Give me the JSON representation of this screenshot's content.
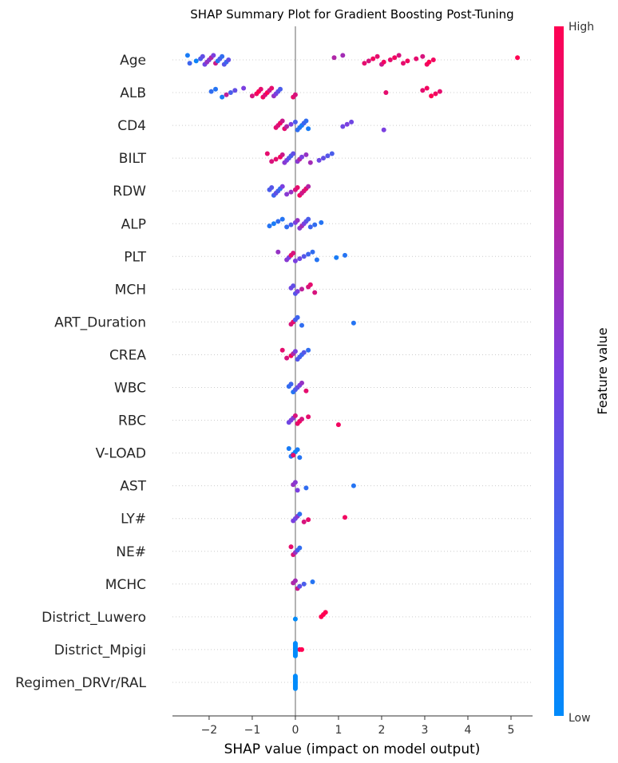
{
  "chart_data": {
    "type": "scatter",
    "subtype": "shap-beeswarm",
    "title": "SHAP Summary Plot for Gradient Boosting Post-Tuning",
    "xlabel": "SHAP value (impact on model output)",
    "xlim": [
      -2.85,
      5.5
    ],
    "xticks": [
      -2,
      -1,
      0,
      1,
      2,
      3,
      4,
      5
    ],
    "features": [
      "Age",
      "ALB",
      "CD4",
      "BILT",
      "RDW",
      "ALP",
      "PLT",
      "MCH",
      "ART_Duration",
      "CREA",
      "WBC",
      "RBC",
      "V-LOAD",
      "AST",
      "LY#",
      "NE#",
      "MCHC",
      "District_Luwero",
      "District_Mpigi",
      "Regimen_DRVr/RAL"
    ],
    "colorbar": {
      "label": "Feature value",
      "high_label": "High",
      "low_label": "Low",
      "high_color": "#ff0052",
      "mid_color": "#7b3fe0",
      "low_color": "#008bfb"
    },
    "series": [
      {
        "feature": "Age",
        "points": [
          [
            -2.5,
            0.1
          ],
          [
            -2.45,
            0.25
          ],
          [
            -2.3,
            0.05
          ],
          [
            -2.2,
            0.3
          ],
          [
            -2.15,
            0.4
          ],
          [
            -2.1,
            0.45
          ],
          [
            -2.05,
            0.6
          ],
          [
            -2.0,
            0.55
          ],
          [
            -1.95,
            0.7
          ],
          [
            -1.9,
            0.5
          ],
          [
            -1.85,
            0.8
          ],
          [
            -1.8,
            0.15
          ],
          [
            -1.75,
            0.3
          ],
          [
            -1.7,
            0.2
          ],
          [
            -1.65,
            0.35
          ],
          [
            -1.6,
            0.25
          ],
          [
            -1.55,
            0.4
          ],
          [
            0.9,
            0.7
          ],
          [
            1.1,
            0.65
          ],
          [
            1.6,
            0.9
          ],
          [
            1.7,
            0.85
          ],
          [
            1.8,
            0.95
          ],
          [
            1.9,
            0.9
          ],
          [
            2.0,
            0.8
          ],
          [
            2.05,
            0.95
          ],
          [
            2.2,
            0.9
          ],
          [
            2.3,
            0.95
          ],
          [
            2.4,
            0.85
          ],
          [
            2.5,
            0.9
          ],
          [
            2.6,
            0.95
          ],
          [
            2.8,
            0.9
          ],
          [
            2.95,
            0.85
          ],
          [
            3.05,
            0.95
          ],
          [
            3.1,
            1.0
          ],
          [
            3.2,
            0.95
          ],
          [
            5.15,
            1.0
          ]
        ]
      },
      {
        "feature": "ALB",
        "points": [
          [
            -1.95,
            0.2
          ],
          [
            -1.85,
            0.15
          ],
          [
            -1.7,
            0.1
          ],
          [
            -1.6,
            0.75
          ],
          [
            -1.5,
            0.3
          ],
          [
            -1.4,
            0.4
          ],
          [
            -1.2,
            0.5
          ],
          [
            -1.0,
            0.85
          ],
          [
            -0.9,
            0.95
          ],
          [
            -0.85,
            1.0
          ],
          [
            -0.8,
            0.9
          ],
          [
            -0.75,
            0.95
          ],
          [
            -0.7,
            0.85
          ],
          [
            -0.65,
            1.0
          ],
          [
            -0.6,
            0.8
          ],
          [
            -0.55,
            0.9
          ],
          [
            -0.5,
            0.6
          ],
          [
            -0.45,
            0.5
          ],
          [
            -0.4,
            0.4
          ],
          [
            -0.35,
            0.3
          ],
          [
            -0.05,
            0.9
          ],
          [
            0.0,
            0.85
          ],
          [
            2.1,
            0.9
          ],
          [
            2.95,
            0.9
          ],
          [
            3.05,
            0.95
          ],
          [
            3.15,
            1.0
          ],
          [
            3.25,
            0.95
          ],
          [
            3.35,
            0.9
          ]
        ]
      },
      {
        "feature": "CD4",
        "points": [
          [
            -0.45,
            0.9
          ],
          [
            -0.4,
            0.85
          ],
          [
            -0.35,
            0.95
          ],
          [
            -0.3,
            0.8
          ],
          [
            -0.25,
            0.9
          ],
          [
            -0.2,
            0.7
          ],
          [
            -0.1,
            0.5
          ],
          [
            0.0,
            0.3
          ],
          [
            0.05,
            0.2
          ],
          [
            0.1,
            0.15
          ],
          [
            0.15,
            0.1
          ],
          [
            0.2,
            0.25
          ],
          [
            0.25,
            0.2
          ],
          [
            0.3,
            0.1
          ],
          [
            1.1,
            0.45
          ],
          [
            1.2,
            0.5
          ],
          [
            1.3,
            0.45
          ],
          [
            2.05,
            0.5
          ]
        ]
      },
      {
        "feature": "BILT",
        "points": [
          [
            -0.65,
            0.9
          ],
          [
            -0.55,
            0.85
          ],
          [
            -0.45,
            0.9
          ],
          [
            -0.35,
            0.95
          ],
          [
            -0.3,
            0.8
          ],
          [
            -0.25,
            0.55
          ],
          [
            -0.2,
            0.5
          ],
          [
            -0.15,
            0.35
          ],
          [
            -0.1,
            0.3
          ],
          [
            -0.05,
            0.4
          ],
          [
            0.05,
            0.55
          ],
          [
            0.1,
            0.7
          ],
          [
            0.15,
            0.5
          ],
          [
            0.25,
            0.6
          ],
          [
            0.35,
            0.65
          ],
          [
            0.55,
            0.45
          ],
          [
            0.65,
            0.4
          ],
          [
            0.75,
            0.35
          ],
          [
            0.85,
            0.3
          ]
        ]
      },
      {
        "feature": "RDW",
        "points": [
          [
            -0.6,
            0.3
          ],
          [
            -0.55,
            0.35
          ],
          [
            -0.5,
            0.25
          ],
          [
            -0.45,
            0.4
          ],
          [
            -0.4,
            0.3
          ],
          [
            -0.35,
            0.2
          ],
          [
            -0.3,
            0.5
          ],
          [
            -0.2,
            0.55
          ],
          [
            -0.1,
            0.6
          ],
          [
            0.0,
            0.85
          ],
          [
            0.05,
            0.9
          ],
          [
            0.1,
            0.95
          ],
          [
            0.15,
            0.8
          ],
          [
            0.2,
            0.85
          ],
          [
            0.25,
            0.9
          ],
          [
            0.3,
            0.7
          ]
        ]
      },
      {
        "feature": "ALP",
        "points": [
          [
            -0.6,
            0.15
          ],
          [
            -0.5,
            0.1
          ],
          [
            -0.4,
            0.2
          ],
          [
            -0.3,
            0.15
          ],
          [
            -0.2,
            0.2
          ],
          [
            -0.1,
            0.3
          ],
          [
            0.0,
            0.5
          ],
          [
            0.05,
            0.6
          ],
          [
            0.1,
            0.55
          ],
          [
            0.15,
            0.65
          ],
          [
            0.2,
            0.5
          ],
          [
            0.25,
            0.4
          ],
          [
            0.3,
            0.3
          ],
          [
            0.35,
            0.25
          ],
          [
            0.45,
            0.2
          ],
          [
            0.6,
            0.15
          ]
        ]
      },
      {
        "feature": "PLT",
        "points": [
          [
            -0.4,
            0.6
          ],
          [
            -0.2,
            0.55
          ],
          [
            -0.15,
            0.5
          ],
          [
            -0.1,
            0.9
          ],
          [
            -0.05,
            0.85
          ],
          [
            0.0,
            0.5
          ],
          [
            0.1,
            0.45
          ],
          [
            0.2,
            0.35
          ],
          [
            0.3,
            0.25
          ],
          [
            0.4,
            0.2
          ],
          [
            0.5,
            0.15
          ],
          [
            0.95,
            0.1
          ],
          [
            1.15,
            0.15
          ]
        ]
      },
      {
        "feature": "MCH",
        "points": [
          [
            -0.1,
            0.45
          ],
          [
            -0.05,
            0.4
          ],
          [
            0.0,
            0.35
          ],
          [
            0.05,
            0.5
          ],
          [
            0.15,
            0.75
          ],
          [
            0.3,
            0.85
          ],
          [
            0.35,
            0.9
          ],
          [
            0.45,
            0.85
          ]
        ]
      },
      {
        "feature": "ART_Duration",
        "points": [
          [
            -0.1,
            0.85
          ],
          [
            -0.05,
            0.9
          ],
          [
            0.0,
            0.3
          ],
          [
            0.05,
            0.25
          ],
          [
            0.15,
            0.2
          ],
          [
            1.35,
            0.15
          ]
        ]
      },
      {
        "feature": "CREA",
        "points": [
          [
            -0.3,
            0.9
          ],
          [
            -0.2,
            0.85
          ],
          [
            -0.1,
            0.95
          ],
          [
            -0.05,
            0.7
          ],
          [
            0.0,
            0.5
          ],
          [
            0.05,
            0.35
          ],
          [
            0.1,
            0.3
          ],
          [
            0.15,
            0.25
          ],
          [
            0.2,
            0.35
          ],
          [
            0.3,
            0.2
          ]
        ]
      },
      {
        "feature": "WBC",
        "points": [
          [
            -0.15,
            0.2
          ],
          [
            -0.1,
            0.25
          ],
          [
            -0.05,
            0.15
          ],
          [
            0.0,
            0.3
          ],
          [
            0.05,
            0.4
          ],
          [
            0.1,
            0.5
          ],
          [
            0.15,
            0.6
          ],
          [
            0.25,
            0.9
          ]
        ]
      },
      {
        "feature": "RBC",
        "points": [
          [
            -0.15,
            0.45
          ],
          [
            -0.1,
            0.5
          ],
          [
            -0.05,
            0.55
          ],
          [
            0.0,
            0.85
          ],
          [
            0.05,
            0.9
          ],
          [
            0.1,
            0.95
          ],
          [
            0.15,
            0.85
          ],
          [
            0.3,
            0.9
          ],
          [
            1.0,
            0.95
          ]
        ]
      },
      {
        "feature": "V-LOAD",
        "points": [
          [
            -0.15,
            0.1
          ],
          [
            -0.1,
            0.15
          ],
          [
            -0.05,
            0.1
          ],
          [
            0.0,
            0.05
          ],
          [
            0.05,
            0.1
          ],
          [
            0.1,
            0.15
          ],
          [
            -0.05,
            0.9
          ]
        ]
      },
      {
        "feature": "AST",
        "points": [
          [
            -0.05,
            0.6
          ],
          [
            0.0,
            0.55
          ],
          [
            0.05,
            0.5
          ],
          [
            0.25,
            0.2
          ],
          [
            1.35,
            0.15
          ]
        ]
      },
      {
        "feature": "LY#",
        "points": [
          [
            -0.05,
            0.5
          ],
          [
            0.0,
            0.45
          ],
          [
            0.05,
            0.55
          ],
          [
            0.1,
            0.2
          ],
          [
            0.2,
            0.85
          ],
          [
            0.3,
            0.9
          ],
          [
            1.15,
            0.95
          ]
        ]
      },
      {
        "feature": "NE#",
        "points": [
          [
            -0.1,
            0.9
          ],
          [
            -0.05,
            0.85
          ],
          [
            0.0,
            0.6
          ],
          [
            0.05,
            0.3
          ],
          [
            0.1,
            0.2
          ]
        ]
      },
      {
        "feature": "MCHC",
        "points": [
          [
            -0.05,
            0.7
          ],
          [
            0.0,
            0.65
          ],
          [
            0.05,
            0.8
          ],
          [
            0.1,
            0.4
          ],
          [
            0.2,
            0.3
          ],
          [
            0.4,
            0.15
          ]
        ]
      },
      {
        "feature": "District_Luwero",
        "points": [
          [
            0.0,
            0.0
          ],
          [
            0.6,
            1.0
          ],
          [
            0.65,
            1.0
          ],
          [
            0.7,
            1.0
          ]
        ]
      },
      {
        "feature": "District_Mpigi",
        "points": [
          [
            0.0,
            0.0
          ],
          [
            0.1,
            1.0
          ],
          [
            0.15,
            1.0
          ]
        ]
      },
      {
        "feature": "Regimen_DRVr/RAL",
        "points": [
          [
            0.0,
            0.0
          ]
        ]
      }
    ]
  }
}
